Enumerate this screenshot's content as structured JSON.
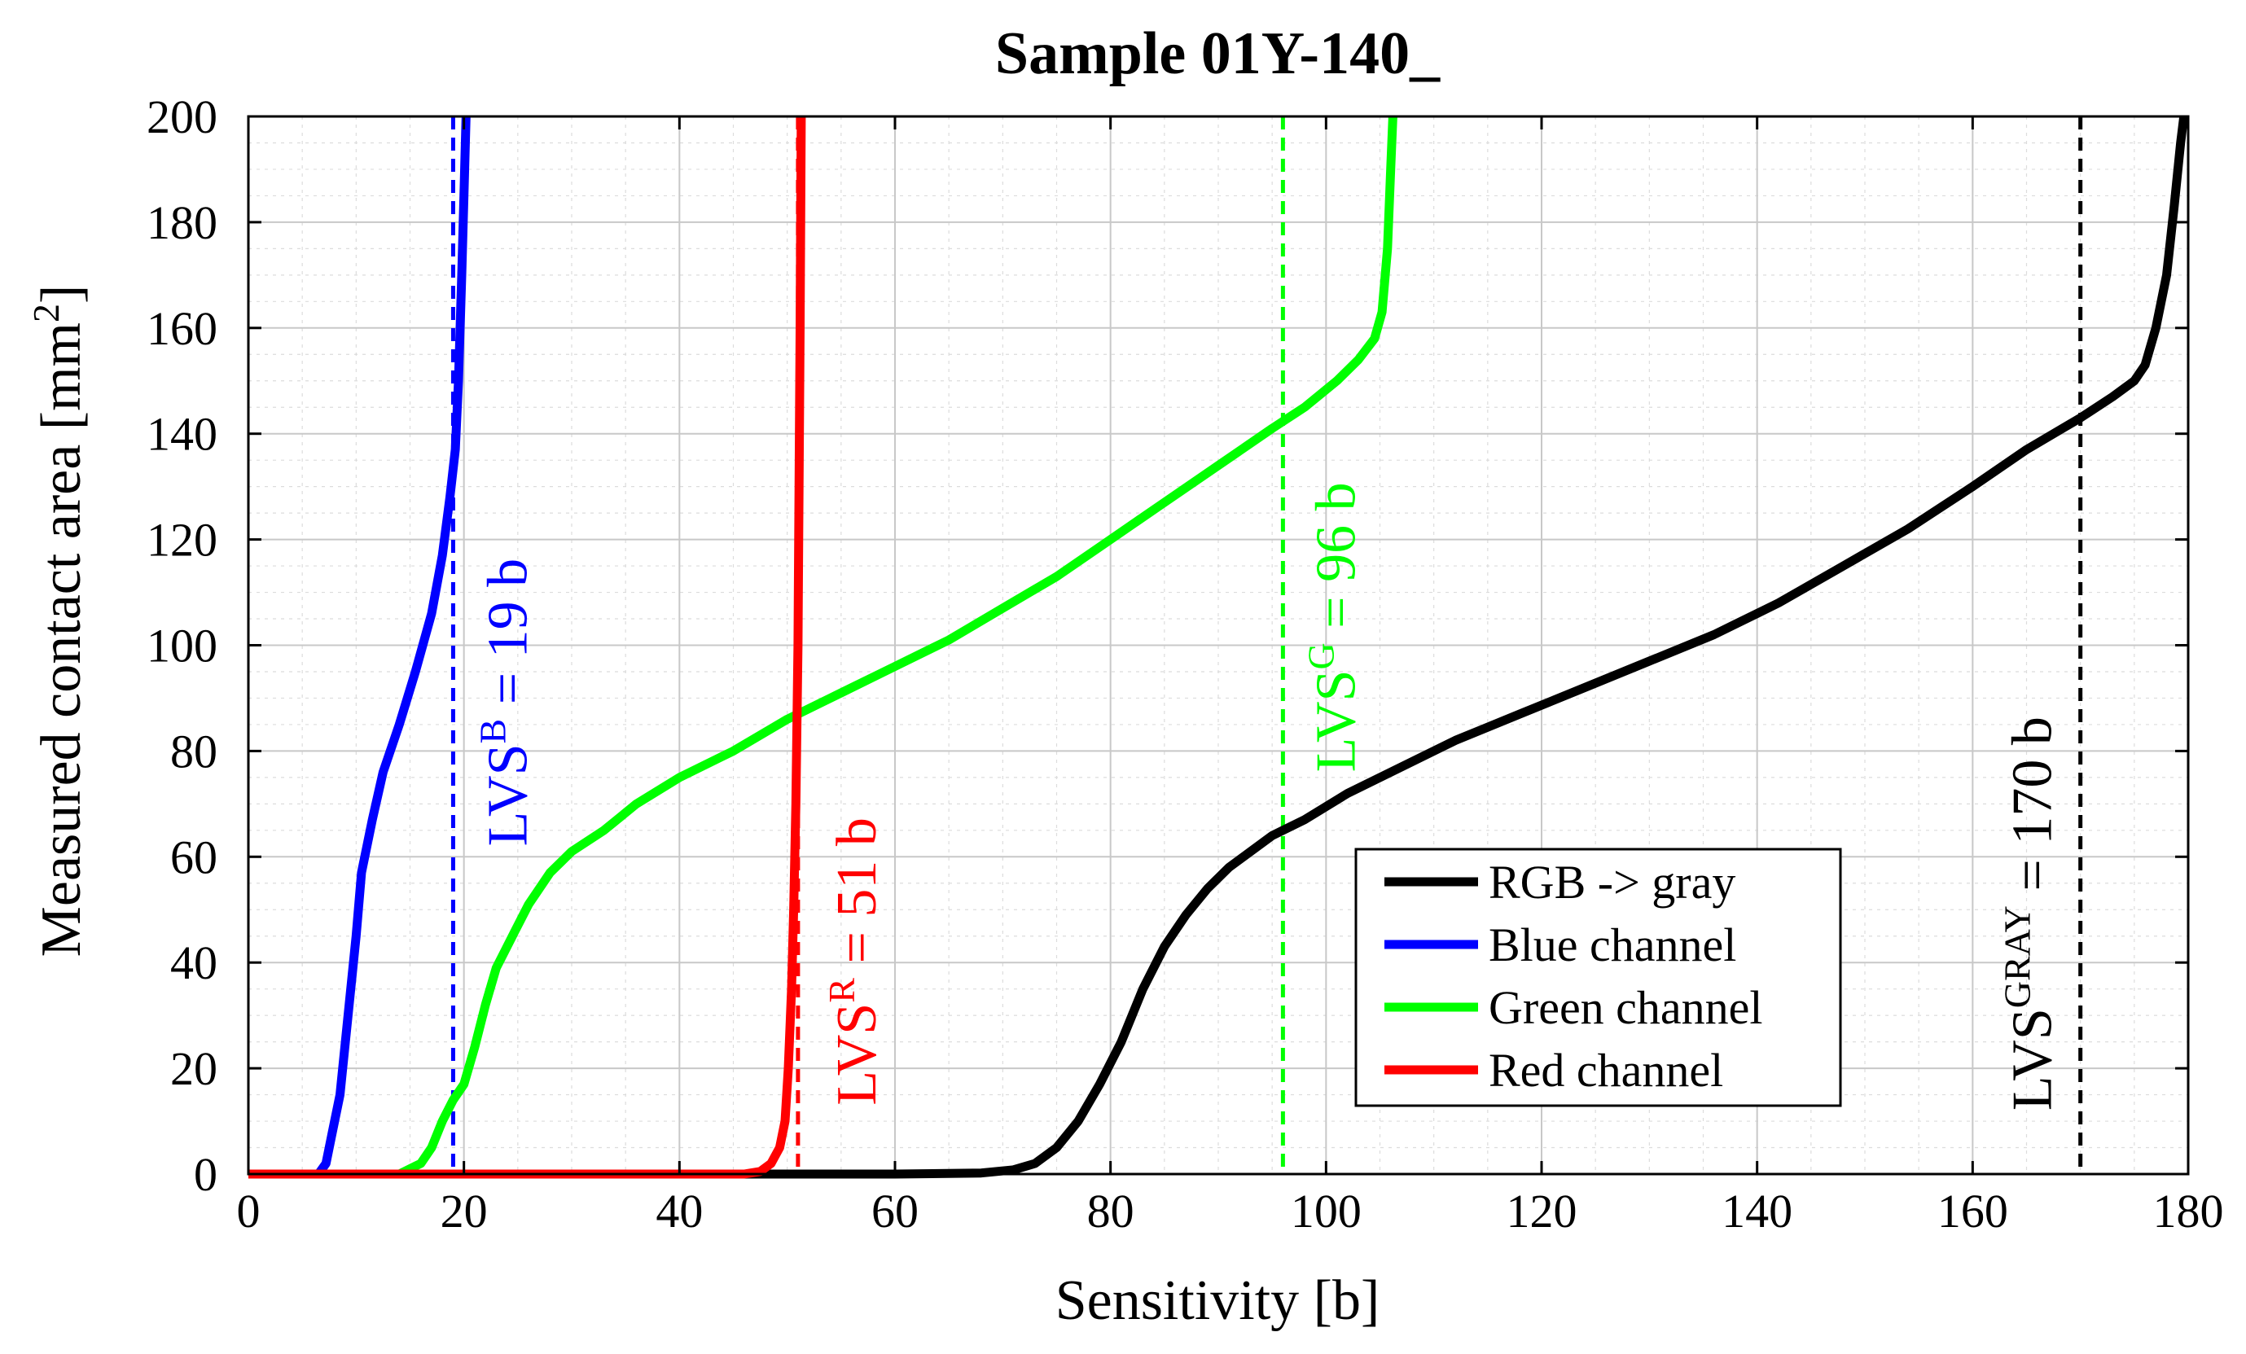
{
  "chart_data": {
    "type": "line",
    "title": "Sample 01Y-140_",
    "xlabel": "Sensitivity [b]",
    "ylabel_main": "Measured contact area [mm",
    "ylabel_sup": "2",
    "ylabel_tail": "]",
    "xlim": [
      0,
      180
    ],
    "ylim": [
      0,
      200
    ],
    "xticks": [
      0,
      20,
      40,
      60,
      80,
      100,
      120,
      140,
      160,
      180
    ],
    "yticks": [
      0,
      20,
      40,
      60,
      80,
      100,
      120,
      140,
      160,
      180,
      200
    ],
    "grid": true,
    "minor_grid": true,
    "legend_position": "lower-right",
    "series": [
      {
        "name": "RGB -> gray",
        "color": "#000000",
        "points": [
          [
            0,
            0
          ],
          [
            60,
            0
          ],
          [
            68,
            0.2
          ],
          [
            71,
            0.8
          ],
          [
            73,
            2
          ],
          [
            75,
            5
          ],
          [
            77,
            10
          ],
          [
            79,
            17
          ],
          [
            81,
            25
          ],
          [
            83,
            35
          ],
          [
            85,
            43
          ],
          [
            87,
            49
          ],
          [
            89,
            54
          ],
          [
            91,
            58
          ],
          [
            93,
            61
          ],
          [
            95,
            64
          ],
          [
            98,
            67
          ],
          [
            102,
            72
          ],
          [
            106,
            76
          ],
          [
            112,
            82
          ],
          [
            118,
            87
          ],
          [
            124,
            92
          ],
          [
            130,
            97
          ],
          [
            136,
            102
          ],
          [
            142,
            108
          ],
          [
            148,
            115
          ],
          [
            154,
            122
          ],
          [
            160,
            130
          ],
          [
            165,
            137
          ],
          [
            170,
            143
          ],
          [
            173,
            147
          ],
          [
            175,
            150
          ],
          [
            176,
            153
          ],
          [
            177,
            160
          ],
          [
            178,
            170
          ],
          [
            178.7,
            183
          ],
          [
            179.3,
            195
          ],
          [
            179.6,
            200
          ]
        ]
      },
      {
        "name": "Blue channel",
        "color": "#0000ff",
        "points": [
          [
            0,
            0
          ],
          [
            6.5,
            0
          ],
          [
            7.2,
            2
          ],
          [
            7.8,
            8
          ],
          [
            8.5,
            15
          ],
          [
            9,
            25
          ],
          [
            9.5,
            35
          ],
          [
            10,
            45
          ],
          [
            10.5,
            57
          ],
          [
            11.5,
            67
          ],
          [
            12.5,
            76
          ],
          [
            14,
            85
          ],
          [
            15.5,
            95
          ],
          [
            17,
            106
          ],
          [
            18,
            117
          ],
          [
            18.7,
            128
          ],
          [
            19.2,
            137
          ],
          [
            19.5,
            150
          ],
          [
            19.8,
            170
          ],
          [
            20,
            185
          ],
          [
            20.2,
            200
          ]
        ]
      },
      {
        "name": "Green channel",
        "color": "#00ff00",
        "points": [
          [
            0,
            0
          ],
          [
            14,
            0
          ],
          [
            16,
            2
          ],
          [
            17,
            5
          ],
          [
            18,
            10
          ],
          [
            19,
            14
          ],
          [
            20,
            17
          ],
          [
            21,
            24
          ],
          [
            22,
            32
          ],
          [
            23,
            39
          ],
          [
            24,
            43
          ],
          [
            25,
            47
          ],
          [
            26,
            51
          ],
          [
            27,
            54
          ],
          [
            28,
            57
          ],
          [
            29,
            59
          ],
          [
            30,
            61
          ],
          [
            33,
            65
          ],
          [
            36,
            70
          ],
          [
            40,
            75
          ],
          [
            45,
            80
          ],
          [
            50,
            86
          ],
          [
            55,
            91
          ],
          [
            60,
            96
          ],
          [
            65,
            101
          ],
          [
            70,
            107
          ],
          [
            75,
            113
          ],
          [
            80,
            120
          ],
          [
            85,
            127
          ],
          [
            90,
            134
          ],
          [
            95,
            141
          ],
          [
            98,
            145
          ],
          [
            101,
            150
          ],
          [
            103,
            154
          ],
          [
            104.5,
            158
          ],
          [
            105.2,
            163
          ],
          [
            105.7,
            175
          ],
          [
            106,
            190
          ],
          [
            106.2,
            200
          ]
        ]
      },
      {
        "name": "Red channel",
        "color": "#ff0000",
        "points": [
          [
            0,
            0
          ],
          [
            46,
            0
          ],
          [
            47.5,
            0.5
          ],
          [
            48.5,
            2
          ],
          [
            49.3,
            5
          ],
          [
            49.8,
            10
          ],
          [
            50.1,
            20
          ],
          [
            50.4,
            35
          ],
          [
            50.6,
            50
          ],
          [
            50.8,
            70
          ],
          [
            50.9,
            85
          ],
          [
            51,
            100
          ],
          [
            51.1,
            130
          ],
          [
            51.2,
            160
          ],
          [
            51.3,
            200
          ]
        ]
      }
    ],
    "lvs_lines": [
      {
        "x": 19,
        "color": "#0000ff",
        "label_main": "LVS",
        "label_sup": "B",
        "label_tail": " = 19 b"
      },
      {
        "x": 51,
        "color": "#ff0000",
        "label_main": "LVS",
        "label_sup": "R",
        "label_tail": " = 51 b"
      },
      {
        "x": 96,
        "color": "#00ff00",
        "label_main": "LVS",
        "label_sup": "G",
        "label_tail": " = 96 b"
      },
      {
        "x": 170,
        "color": "#000000",
        "label_main": "LVS",
        "label_sup": "GRAY",
        "label_tail": " = 170 b"
      }
    ]
  }
}
